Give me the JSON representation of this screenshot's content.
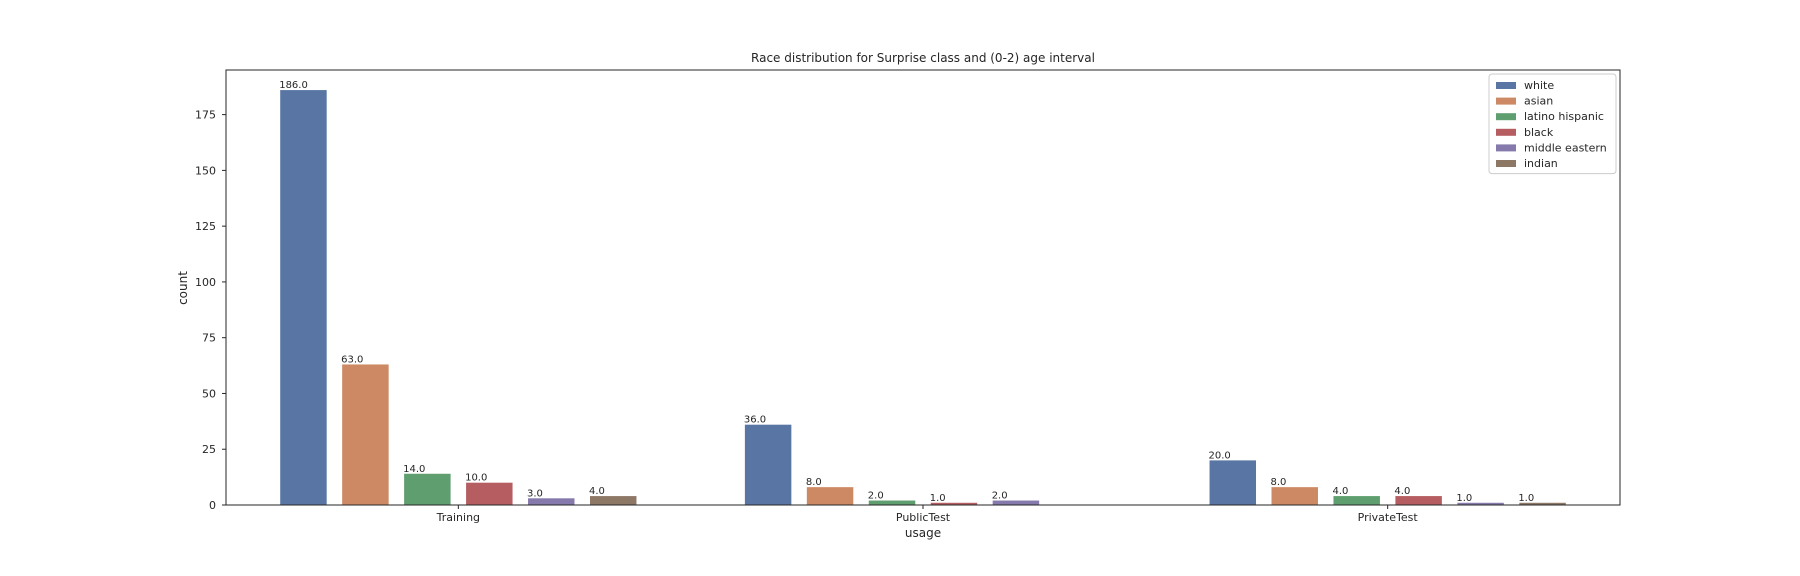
{
  "chart_data": {
    "type": "bar",
    "title": "Race distribution for Surprise class and (0-2) age interval",
    "xlabel": "usage",
    "ylabel": "count",
    "categories": [
      "Training",
      "PublicTest",
      "PrivateTest"
    ],
    "ylim": [
      0,
      195
    ],
    "yticks": [
      0,
      25,
      50,
      75,
      100,
      125,
      150,
      175
    ],
    "grid": false,
    "legend_position": "top-right",
    "series": [
      {
        "name": "white",
        "color": "#5875a4",
        "values": [
          186.0,
          36.0,
          20.0
        ],
        "labels": [
          "186.0",
          "36.0",
          "20.0"
        ]
      },
      {
        "name": "asian",
        "color": "#cc8963",
        "values": [
          63.0,
          8.0,
          8.0
        ],
        "labels": [
          "63.0",
          "8.0",
          "8.0"
        ]
      },
      {
        "name": "latino hispanic",
        "color": "#5f9e6e",
        "values": [
          14.0,
          2.0,
          4.0
        ],
        "labels": [
          "14.0",
          "2.0",
          "4.0"
        ]
      },
      {
        "name": "black",
        "color": "#b55d60",
        "values": [
          10.0,
          1.0,
          4.0
        ],
        "labels": [
          "10.0",
          "1.0",
          "4.0"
        ]
      },
      {
        "name": "middle eastern",
        "color": "#857aab",
        "values": [
          3.0,
          2.0,
          1.0
        ],
        "labels": [
          "3.0",
          "2.0",
          "1.0"
        ]
      },
      {
        "name": "indian",
        "color": "#8d7866",
        "values": [
          4.0,
          null,
          1.0
        ],
        "labels": [
          "4.0",
          "",
          "1.0"
        ]
      }
    ]
  }
}
